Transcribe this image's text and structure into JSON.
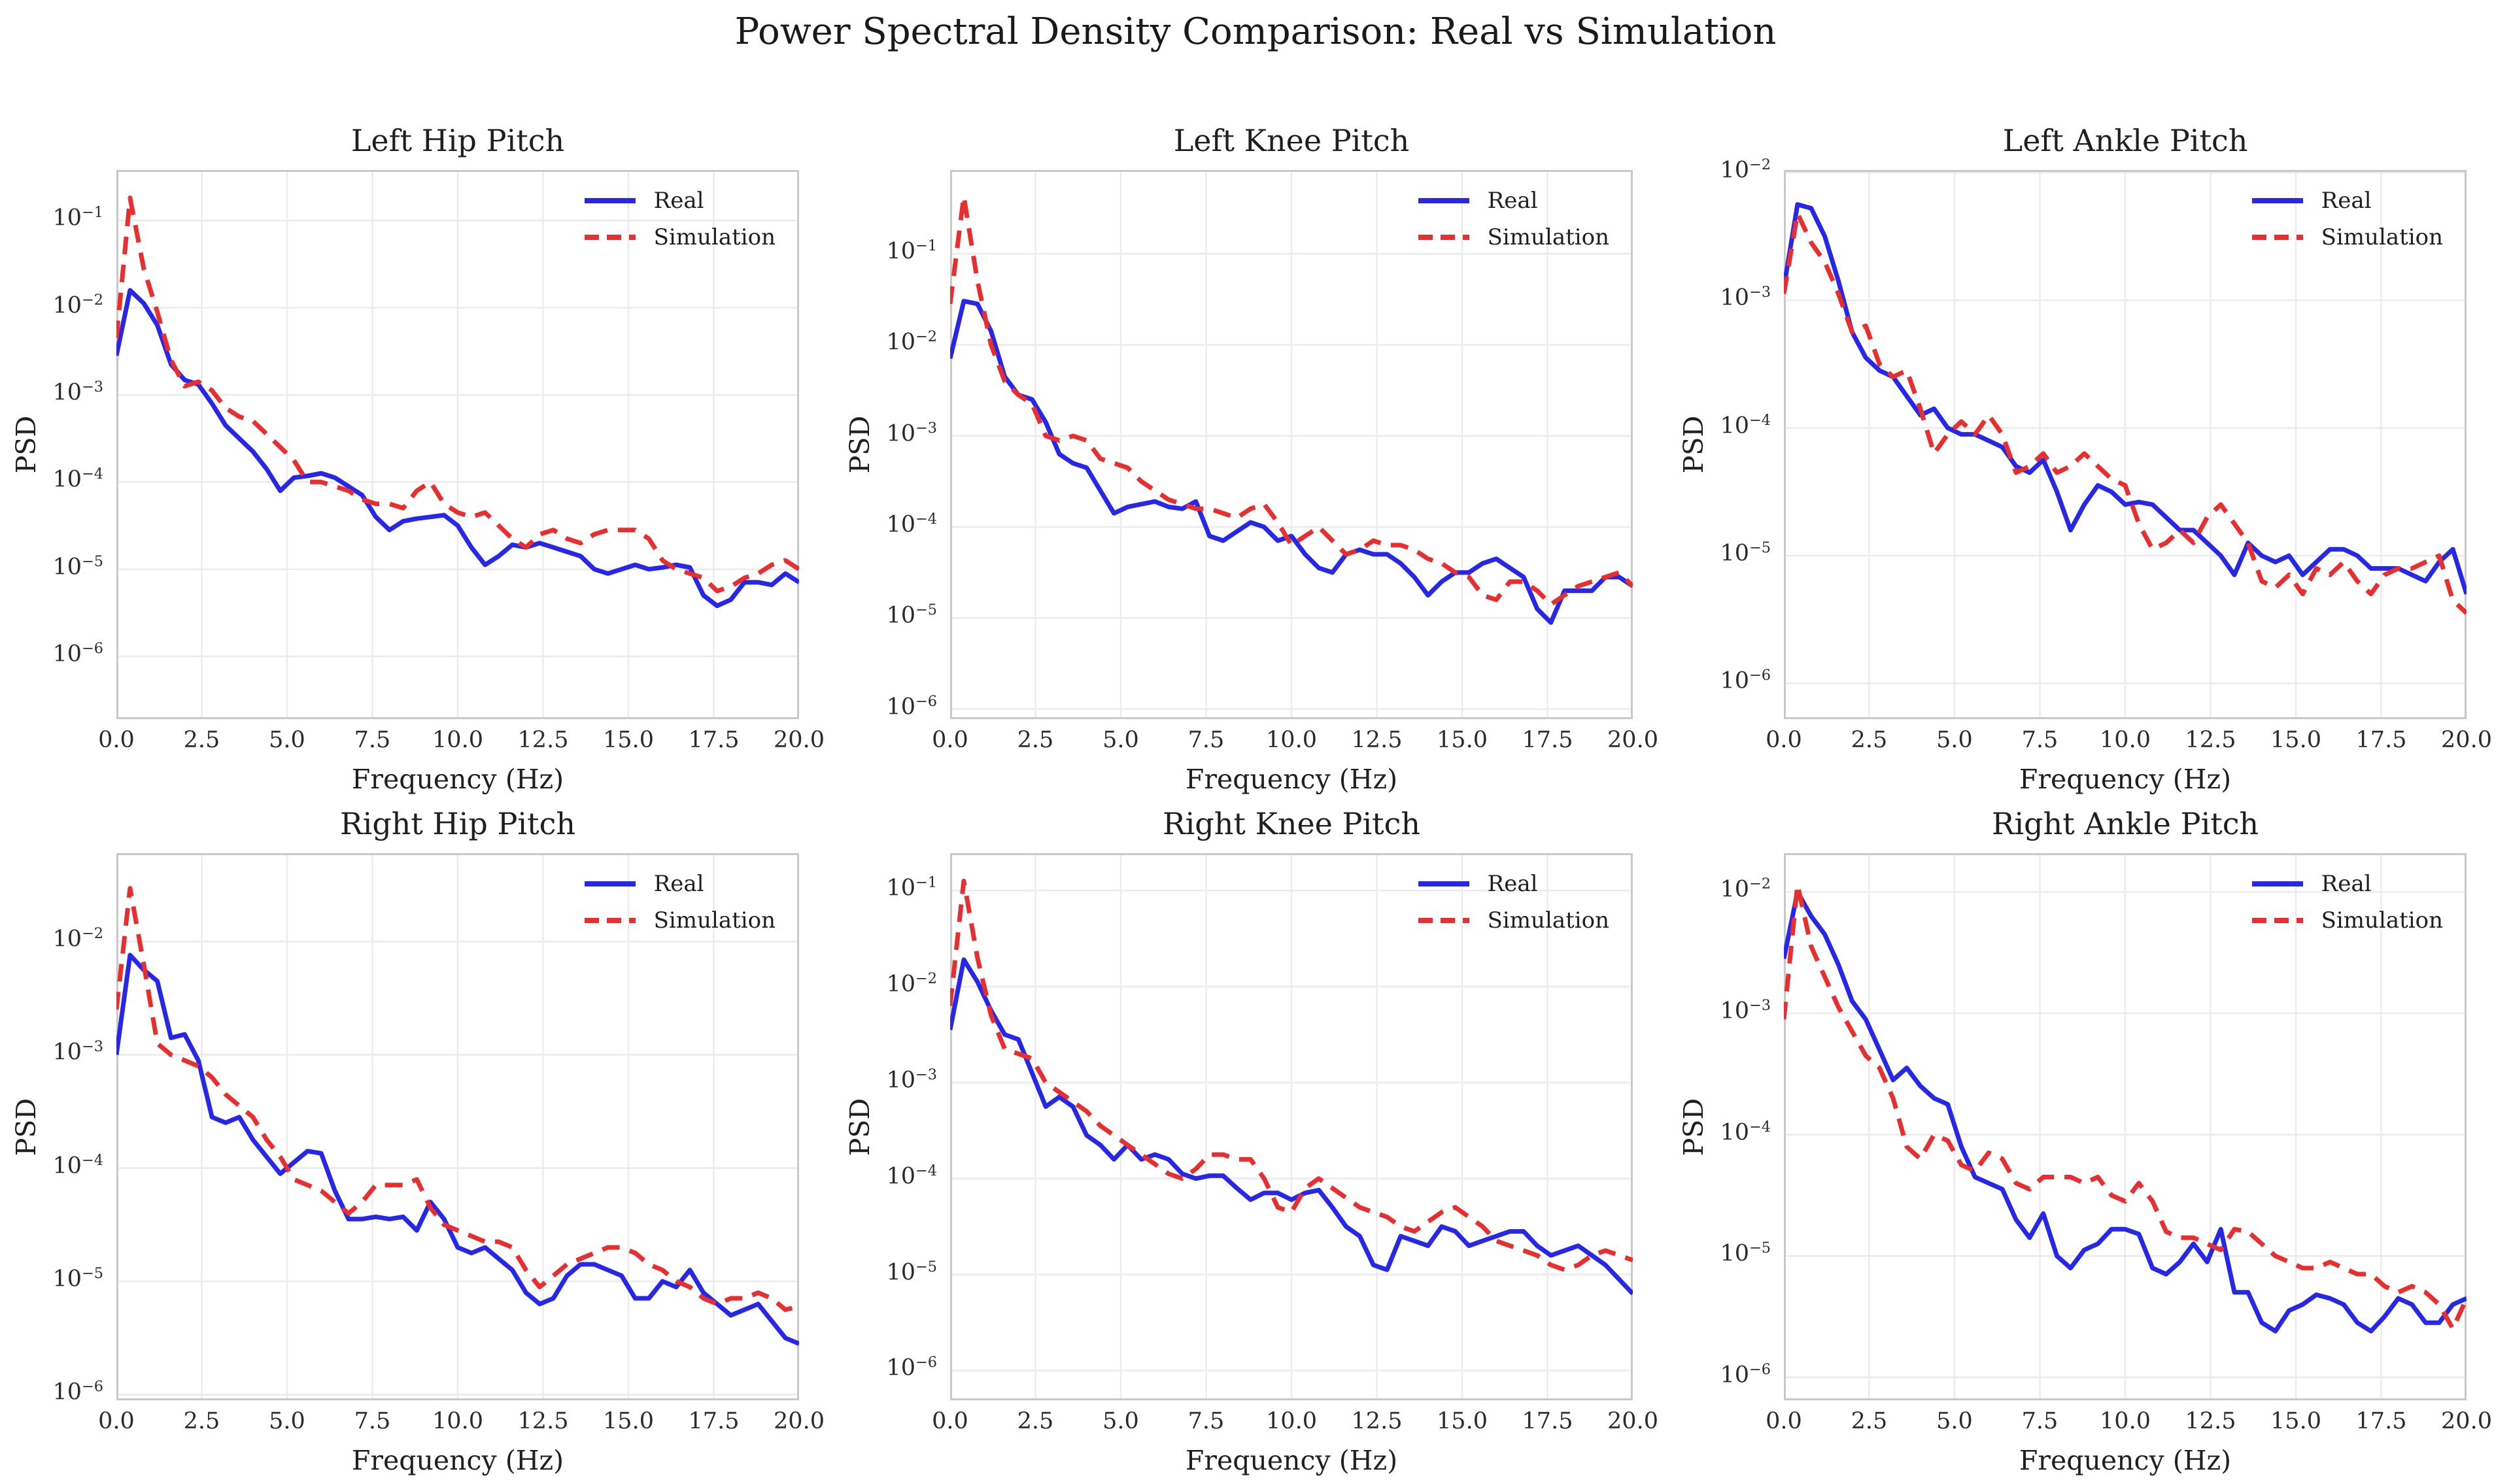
{
  "figure": {
    "suptitle": "Power Spectral Density Comparison: Real vs Simulation",
    "legend": {
      "real": "Real",
      "sim": "Simulation"
    },
    "colors": {
      "real_line": "#2727e8",
      "sim_line": "#e82f2f",
      "grid": "#ebebeb",
      "spine": "#c8c8c8",
      "text": "#262626",
      "background": "#ffffff"
    }
  },
  "chart_data": [
    {
      "type": "line",
      "title": "Left Hip Pitch",
      "xlabel": "Frequency (Hz)",
      "ylabel": "PSD",
      "y_scale": "log",
      "grid": true,
      "legend_position": "upper right",
      "xlim": [
        0,
        20
      ],
      "x_ticks": [
        0,
        2.5,
        5,
        7.5,
        10,
        12.5,
        15,
        17.5,
        20
      ],
      "x_tick_labels": [
        "0.0",
        "2.5",
        "5.0",
        "7.5",
        "10.0",
        "12.5",
        "15.0",
        "17.5",
        "20.0"
      ],
      "y_tick_exponents": [
        -1,
        -2,
        -3,
        -4,
        -5,
        -6
      ],
      "ylim_log10": [
        -6.72,
        -0.42
      ],
      "x_start": 0,
      "x_step": 0.4,
      "series": [
        {
          "name": "Real",
          "style": "solid",
          "log10_values": [
            -2.55,
            -1.8,
            -1.95,
            -2.2,
            -2.65,
            -2.83,
            -2.88,
            -3.1,
            -3.35,
            -3.5,
            -3.65,
            -3.85,
            -4.1,
            -3.95,
            -3.93,
            -3.9,
            -3.95,
            -4.05,
            -4.15,
            -4.4,
            -4.55,
            -4.45,
            -4.42,
            -4.4,
            -4.38,
            -4.5,
            -4.75,
            -4.95,
            -4.85,
            -4.72,
            -4.75,
            -4.7,
            -4.75,
            -4.8,
            -4.85,
            -5.0,
            -5.05,
            -5.0,
            -4.95,
            -5.0,
            -4.98,
            -4.95,
            -4.98,
            -5.3,
            -5.42,
            -5.35,
            -5.15,
            -5.15,
            -5.18,
            -5.05,
            -5.15
          ]
        },
        {
          "name": "Simulation",
          "style": "dashed",
          "log10_values": [
            -2.35,
            -0.74,
            -1.55,
            -2.05,
            -2.6,
            -2.9,
            -2.85,
            -2.95,
            -3.15,
            -3.25,
            -3.3,
            -3.45,
            -3.6,
            -3.75,
            -4.0,
            -4.0,
            -4.05,
            -4.1,
            -4.2,
            -4.25,
            -4.25,
            -4.3,
            -4.1,
            -4.0,
            -4.25,
            -4.35,
            -4.4,
            -4.35,
            -4.5,
            -4.65,
            -4.75,
            -4.6,
            -4.55,
            -4.65,
            -4.7,
            -4.6,
            -4.55,
            -4.55,
            -4.55,
            -4.65,
            -4.9,
            -5.0,
            -5.05,
            -5.1,
            -5.25,
            -5.2,
            -5.1,
            -5.05,
            -4.95,
            -4.9,
            -5.0
          ]
        }
      ]
    },
    {
      "type": "line",
      "title": "Left Knee Pitch",
      "xlabel": "Frequency (Hz)",
      "ylabel": "PSD",
      "y_scale": "log",
      "grid": true,
      "legend_position": "upper right",
      "xlim": [
        0,
        20
      ],
      "x_ticks": [
        0,
        2.5,
        5,
        7.5,
        10,
        12.5,
        15,
        17.5,
        20
      ],
      "x_tick_labels": [
        "0.0",
        "2.5",
        "5.0",
        "7.5",
        "10.0",
        "12.5",
        "15.0",
        "17.5",
        "20.0"
      ],
      "y_tick_exponents": [
        -1,
        -2,
        -3,
        -4,
        -5,
        -6
      ],
      "ylim_log10": [
        -6.11,
        -0.08
      ],
      "x_start": 0,
      "x_step": 0.4,
      "series": [
        {
          "name": "Real",
          "style": "solid",
          "log10_values": [
            -2.15,
            -1.52,
            -1.55,
            -1.85,
            -2.35,
            -2.55,
            -2.6,
            -2.85,
            -3.2,
            -3.3,
            -3.35,
            -3.6,
            -3.85,
            -3.78,
            -3.75,
            -3.72,
            -3.78,
            -3.8,
            -3.72,
            -4.1,
            -4.15,
            -4.05,
            -3.95,
            -4.0,
            -4.15,
            -4.1,
            -4.3,
            -4.45,
            -4.5,
            -4.3,
            -4.25,
            -4.3,
            -4.3,
            -4.4,
            -4.55,
            -4.75,
            -4.6,
            -4.5,
            -4.5,
            -4.4,
            -4.35,
            -4.45,
            -4.55,
            -4.9,
            -5.05,
            -4.7,
            -4.7,
            -4.7,
            -4.55,
            -4.55,
            -4.65
          ]
        },
        {
          "name": "Simulation",
          "style": "dashed",
          "log10_values": [
            -1.55,
            -0.37,
            -1.3,
            -2.0,
            -2.4,
            -2.55,
            -2.65,
            -3.0,
            -3.05,
            -3.0,
            -3.05,
            -3.25,
            -3.3,
            -3.35,
            -3.5,
            -3.6,
            -3.7,
            -3.75,
            -3.8,
            -3.8,
            -3.85,
            -3.9,
            -3.8,
            -3.75,
            -3.95,
            -4.2,
            -4.1,
            -4.0,
            -4.15,
            -4.3,
            -4.25,
            -4.15,
            -4.2,
            -4.2,
            -4.25,
            -4.35,
            -4.4,
            -4.5,
            -4.55,
            -4.75,
            -4.8,
            -4.6,
            -4.6,
            -4.7,
            -4.85,
            -4.75,
            -4.65,
            -4.6,
            -4.55,
            -4.5,
            -4.65
          ]
        }
      ]
    },
    {
      "type": "line",
      "title": "Left Ankle Pitch",
      "xlabel": "Frequency (Hz)",
      "ylabel": "PSD",
      "y_scale": "log",
      "grid": true,
      "legend_position": "upper right",
      "xlim": [
        0,
        20
      ],
      "x_ticks": [
        0,
        2.5,
        5,
        7.5,
        10,
        12.5,
        15,
        17.5,
        20
      ],
      "x_tick_labels": [
        "0.0",
        "2.5",
        "5.0",
        "7.5",
        "10.0",
        "12.5",
        "15.0",
        "17.5",
        "20.0"
      ],
      "y_tick_exponents": [
        -2,
        -3,
        -4,
        -5,
        -6
      ],
      "ylim_log10": [
        -6.28,
        -1.98
      ],
      "x_start": 0,
      "x_step": 0.4,
      "series": [
        {
          "name": "Real",
          "style": "solid",
          "log10_values": [
            -2.9,
            -2.25,
            -2.28,
            -2.5,
            -2.85,
            -3.25,
            -3.45,
            -3.55,
            -3.6,
            -3.75,
            -3.9,
            -3.85,
            -4.0,
            -4.05,
            -4.05,
            -4.1,
            -4.15,
            -4.3,
            -4.35,
            -4.25,
            -4.5,
            -4.8,
            -4.6,
            -4.45,
            -4.5,
            -4.6,
            -4.58,
            -4.6,
            -4.7,
            -4.8,
            -4.8,
            -4.9,
            -5.0,
            -5.15,
            -4.9,
            -5.0,
            -5.05,
            -5.0,
            -5.15,
            -5.05,
            -4.95,
            -4.95,
            -5.0,
            -5.1,
            -5.1,
            -5.1,
            -5.15,
            -5.2,
            -5.05,
            -4.95,
            -5.3
          ]
        },
        {
          "name": "Simulation",
          "style": "dashed",
          "log10_values": [
            -2.95,
            -2.32,
            -2.55,
            -2.7,
            -2.95,
            -3.25,
            -3.2,
            -3.5,
            -3.6,
            -3.55,
            -3.85,
            -4.2,
            -4.05,
            -3.95,
            -4.05,
            -3.9,
            -4.05,
            -4.35,
            -4.3,
            -4.2,
            -4.35,
            -4.3,
            -4.2,
            -4.3,
            -4.4,
            -4.45,
            -4.75,
            -4.95,
            -4.9,
            -4.8,
            -4.9,
            -4.7,
            -4.6,
            -4.75,
            -4.9,
            -5.2,
            -5.25,
            -5.15,
            -5.3,
            -5.1,
            -5.15,
            -5.05,
            -5.2,
            -5.3,
            -5.15,
            -5.1,
            -5.1,
            -5.05,
            -5.0,
            -5.35,
            -5.45
          ]
        }
      ]
    },
    {
      "type": "line",
      "title": "Right Hip Pitch",
      "xlabel": "Frequency (Hz)",
      "ylabel": "PSD",
      "y_scale": "log",
      "grid": true,
      "legend_position": "upper right",
      "xlim": [
        0,
        20
      ],
      "x_ticks": [
        0,
        2.5,
        5,
        7.5,
        10,
        12.5,
        15,
        17.5,
        20
      ],
      "x_tick_labels": [
        "0.0",
        "2.5",
        "5.0",
        "7.5",
        "10.0",
        "12.5",
        "15.0",
        "17.5",
        "20.0"
      ],
      "y_tick_exponents": [
        -2,
        -3,
        -4,
        -5,
        -6
      ],
      "ylim_log10": [
        -6.05,
        -1.22
      ],
      "x_start": 0,
      "x_step": 0.4,
      "series": [
        {
          "name": "Real",
          "style": "solid",
          "log10_values": [
            -3.0,
            -2.12,
            -2.25,
            -2.35,
            -2.85,
            -2.82,
            -3.05,
            -3.55,
            -3.6,
            -3.55,
            -3.75,
            -3.9,
            -4.05,
            -3.95,
            -3.85,
            -3.87,
            -4.2,
            -4.45,
            -4.45,
            -4.43,
            -4.45,
            -4.43,
            -4.55,
            -4.3,
            -4.45,
            -4.7,
            -4.75,
            -4.7,
            -4.8,
            -4.9,
            -5.1,
            -5.2,
            -5.15,
            -4.95,
            -4.85,
            -4.85,
            -4.9,
            -4.95,
            -5.15,
            -5.15,
            -5.0,
            -5.05,
            -4.9,
            -5.1,
            -5.2,
            -5.3,
            -5.25,
            -5.2,
            -5.35,
            -5.5,
            -5.55
          ]
        },
        {
          "name": "Simulation",
          "style": "dashed",
          "log10_values": [
            -2.6,
            -1.53,
            -2.2,
            -2.9,
            -3.0,
            -3.05,
            -3.1,
            -3.2,
            -3.35,
            -3.45,
            -3.55,
            -3.75,
            -3.9,
            -4.1,
            -4.15,
            -4.2,
            -4.3,
            -4.4,
            -4.3,
            -4.15,
            -4.15,
            -4.15,
            -4.1,
            -4.35,
            -4.5,
            -4.55,
            -4.6,
            -4.65,
            -4.65,
            -4.7,
            -4.9,
            -5.05,
            -4.95,
            -4.85,
            -4.8,
            -4.75,
            -4.7,
            -4.7,
            -4.75,
            -4.85,
            -4.9,
            -5.0,
            -5.05,
            -5.15,
            -5.2,
            -5.15,
            -5.15,
            -5.1,
            -5.15,
            -5.25,
            -5.22
          ]
        }
      ]
    },
    {
      "type": "line",
      "title": "Right Knee Pitch",
      "xlabel": "Frequency (Hz)",
      "ylabel": "PSD",
      "y_scale": "log",
      "grid": true,
      "legend_position": "upper right",
      "xlim": [
        0,
        20
      ],
      "x_ticks": [
        0,
        2.5,
        5,
        7.5,
        10,
        12.5,
        15,
        17.5,
        20
      ],
      "x_tick_labels": [
        "0.0",
        "2.5",
        "5.0",
        "7.5",
        "10.0",
        "12.5",
        "15.0",
        "17.5",
        "20.0"
      ],
      "y_tick_exponents": [
        -1,
        -2,
        -3,
        -4,
        -5,
        -6
      ],
      "ylim_log10": [
        -6.31,
        -0.61
      ],
      "x_start": 0,
      "x_step": 0.4,
      "series": [
        {
          "name": "Real",
          "style": "solid",
          "log10_values": [
            -2.45,
            -1.72,
            -1.95,
            -2.25,
            -2.5,
            -2.55,
            -2.9,
            -3.25,
            -3.15,
            -3.25,
            -3.55,
            -3.65,
            -3.8,
            -3.65,
            -3.8,
            -3.75,
            -3.8,
            -3.95,
            -4.0,
            -3.97,
            -3.97,
            -4.1,
            -4.22,
            -4.15,
            -4.15,
            -4.22,
            -4.15,
            -4.12,
            -4.3,
            -4.5,
            -4.6,
            -4.9,
            -4.95,
            -4.6,
            -4.65,
            -4.7,
            -4.5,
            -4.55,
            -4.7,
            -4.65,
            -4.6,
            -4.55,
            -4.55,
            -4.7,
            -4.8,
            -4.75,
            -4.7,
            -4.8,
            -4.9,
            -5.05,
            -5.2
          ]
        },
        {
          "name": "Simulation",
          "style": "dashed",
          "log10_values": [
            -2.2,
            -0.9,
            -1.7,
            -2.3,
            -2.65,
            -2.7,
            -2.75,
            -3.0,
            -3.1,
            -3.2,
            -3.3,
            -3.45,
            -3.55,
            -3.65,
            -3.75,
            -3.85,
            -3.95,
            -4.0,
            -3.9,
            -3.75,
            -3.75,
            -3.8,
            -3.8,
            -4.0,
            -4.3,
            -4.35,
            -4.1,
            -4.0,
            -4.1,
            -4.2,
            -4.3,
            -4.35,
            -4.4,
            -4.5,
            -4.55,
            -4.45,
            -4.35,
            -4.3,
            -4.4,
            -4.5,
            -4.65,
            -4.7,
            -4.75,
            -4.8,
            -4.9,
            -4.95,
            -4.9,
            -4.8,
            -4.75,
            -4.8,
            -4.85
          ]
        }
      ]
    },
    {
      "type": "line",
      "title": "Right Ankle Pitch",
      "xlabel": "Frequency (Hz)",
      "ylabel": "PSD",
      "y_scale": "log",
      "grid": true,
      "legend_position": "upper right",
      "xlim": [
        0,
        20
      ],
      "x_ticks": [
        0,
        2.5,
        5,
        7.5,
        10,
        12.5,
        15,
        17.5,
        20
      ],
      "x_tick_labels": [
        "0.0",
        "2.5",
        "5.0",
        "7.5",
        "10.0",
        "12.5",
        "15.0",
        "17.5",
        "20.0"
      ],
      "y_tick_exponents": [
        -2,
        -3,
        -4,
        -5,
        -6
      ],
      "ylim_log10": [
        -6.19,
        -1.68
      ],
      "x_start": 0,
      "x_step": 0.4,
      "series": [
        {
          "name": "Real",
          "style": "solid",
          "log10_values": [
            -2.55,
            -2.0,
            -2.2,
            -2.35,
            -2.6,
            -2.9,
            -3.05,
            -3.3,
            -3.55,
            -3.45,
            -3.6,
            -3.7,
            -3.75,
            -4.1,
            -4.35,
            -4.4,
            -4.45,
            -4.7,
            -4.85,
            -4.65,
            -5.0,
            -5.1,
            -4.95,
            -4.9,
            -4.78,
            -4.78,
            -4.82,
            -5.1,
            -5.15,
            -5.05,
            -4.9,
            -5.05,
            -4.78,
            -5.3,
            -5.3,
            -5.55,
            -5.62,
            -5.45,
            -5.4,
            -5.32,
            -5.35,
            -5.4,
            -5.55,
            -5.62,
            -5.5,
            -5.35,
            -5.4,
            -5.55,
            -5.55,
            -5.4,
            -5.35
          ]
        },
        {
          "name": "Simulation",
          "style": "dashed",
          "log10_values": [
            -3.05,
            -1.94,
            -2.45,
            -2.7,
            -2.95,
            -3.15,
            -3.35,
            -3.45,
            -3.7,
            -4.1,
            -4.2,
            -4.0,
            -4.05,
            -4.25,
            -4.3,
            -4.15,
            -4.2,
            -4.4,
            -4.45,
            -4.35,
            -4.35,
            -4.35,
            -4.4,
            -4.35,
            -4.5,
            -4.55,
            -4.4,
            -4.55,
            -4.8,
            -4.85,
            -4.85,
            -4.9,
            -4.95,
            -4.78,
            -4.8,
            -4.9,
            -5.0,
            -5.05,
            -5.1,
            -5.1,
            -5.05,
            -5.1,
            -5.15,
            -5.15,
            -5.25,
            -5.3,
            -5.25,
            -5.3,
            -5.4,
            -5.6,
            -5.35
          ]
        }
      ]
    }
  ]
}
